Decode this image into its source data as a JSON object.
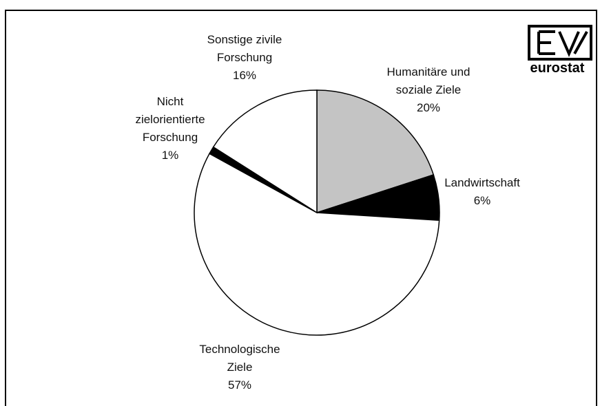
{
  "chart_data": {
    "type": "pie",
    "categories": [
      "Humanitäre und soziale Ziele",
      "Landwirtschaft",
      "Technologische Ziele",
      "Nicht zielorientierte Forschung",
      "Sonstige zivile Forschung"
    ],
    "values": [
      20,
      6,
      57,
      1,
      16
    ],
    "value_labels": [
      "20%",
      "6%",
      "57%",
      "1%",
      "16%"
    ],
    "colors": [
      "#c4c4c4",
      "#000000",
      "#ffffff",
      "#000000",
      "#ffffff"
    ],
    "logo": "eurostat"
  }
}
